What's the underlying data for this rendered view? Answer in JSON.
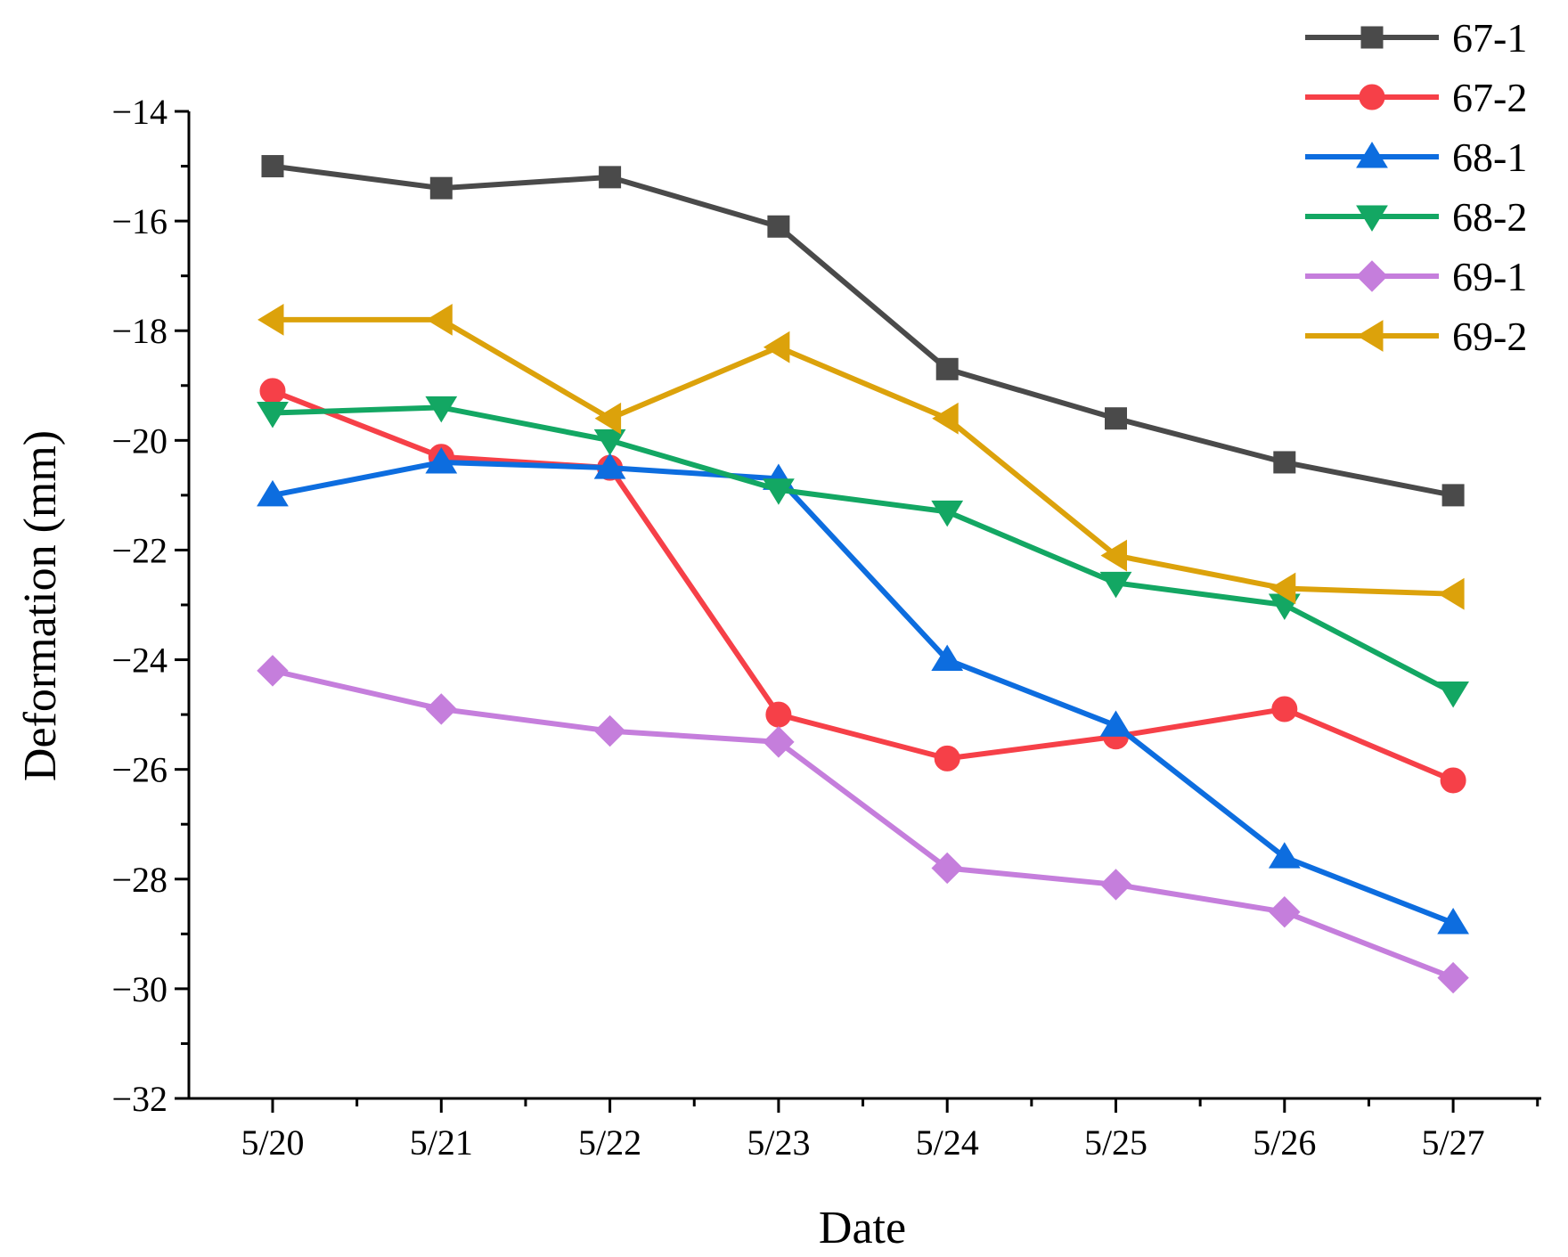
{
  "chart_data": {
    "type": "line",
    "title": "",
    "xlabel": "Date",
    "ylabel": "Deformation (mm)",
    "categories": [
      "5/20",
      "5/21",
      "5/22",
      "5/23",
      "5/24",
      "5/25",
      "5/26",
      "5/27"
    ],
    "ylim": [
      -32,
      -14
    ],
    "yticks": [
      -14,
      -16,
      -18,
      -20,
      -22,
      -24,
      -26,
      -28,
      -30,
      -32
    ],
    "ytick_labels": [
      "−14",
      "−16",
      "−18",
      "−20",
      "−22",
      "−24",
      "−26",
      "−28",
      "−30",
      "−32"
    ],
    "legend_position": "top-right",
    "series": [
      {
        "name": "67-1",
        "color": "#4a4a4a",
        "marker": "square",
        "values": [
          -15.0,
          -15.4,
          -15.2,
          -16.1,
          -18.7,
          -19.6,
          -20.4,
          -21.0
        ]
      },
      {
        "name": "67-2",
        "color": "#f64048",
        "marker": "circle",
        "values": [
          -19.1,
          -20.3,
          -20.5,
          -25.0,
          -25.8,
          -25.4,
          -24.9,
          -26.2
        ]
      },
      {
        "name": "68-1",
        "color": "#0d6ddf",
        "marker": "triangle-up",
        "values": [
          -21.0,
          -20.4,
          -20.5,
          -20.7,
          -24.0,
          -25.2,
          -27.6,
          -28.8
        ]
      },
      {
        "name": "68-2",
        "color": "#13a763",
        "marker": "triangle-down",
        "values": [
          -19.5,
          -19.4,
          -20.0,
          -20.9,
          -21.3,
          -22.6,
          -23.0,
          -24.6
        ]
      },
      {
        "name": "69-1",
        "color": "#c57edc",
        "marker": "diamond",
        "values": [
          -24.2,
          -24.9,
          -25.3,
          -25.5,
          -27.8,
          -28.1,
          -28.6,
          -29.8
        ]
      },
      {
        "name": "69-2",
        "color": "#dca20b",
        "marker": "triangle-left",
        "values": [
          -17.8,
          -17.8,
          -19.6,
          -18.3,
          -19.6,
          -22.1,
          -22.7,
          -22.8
        ]
      }
    ]
  }
}
